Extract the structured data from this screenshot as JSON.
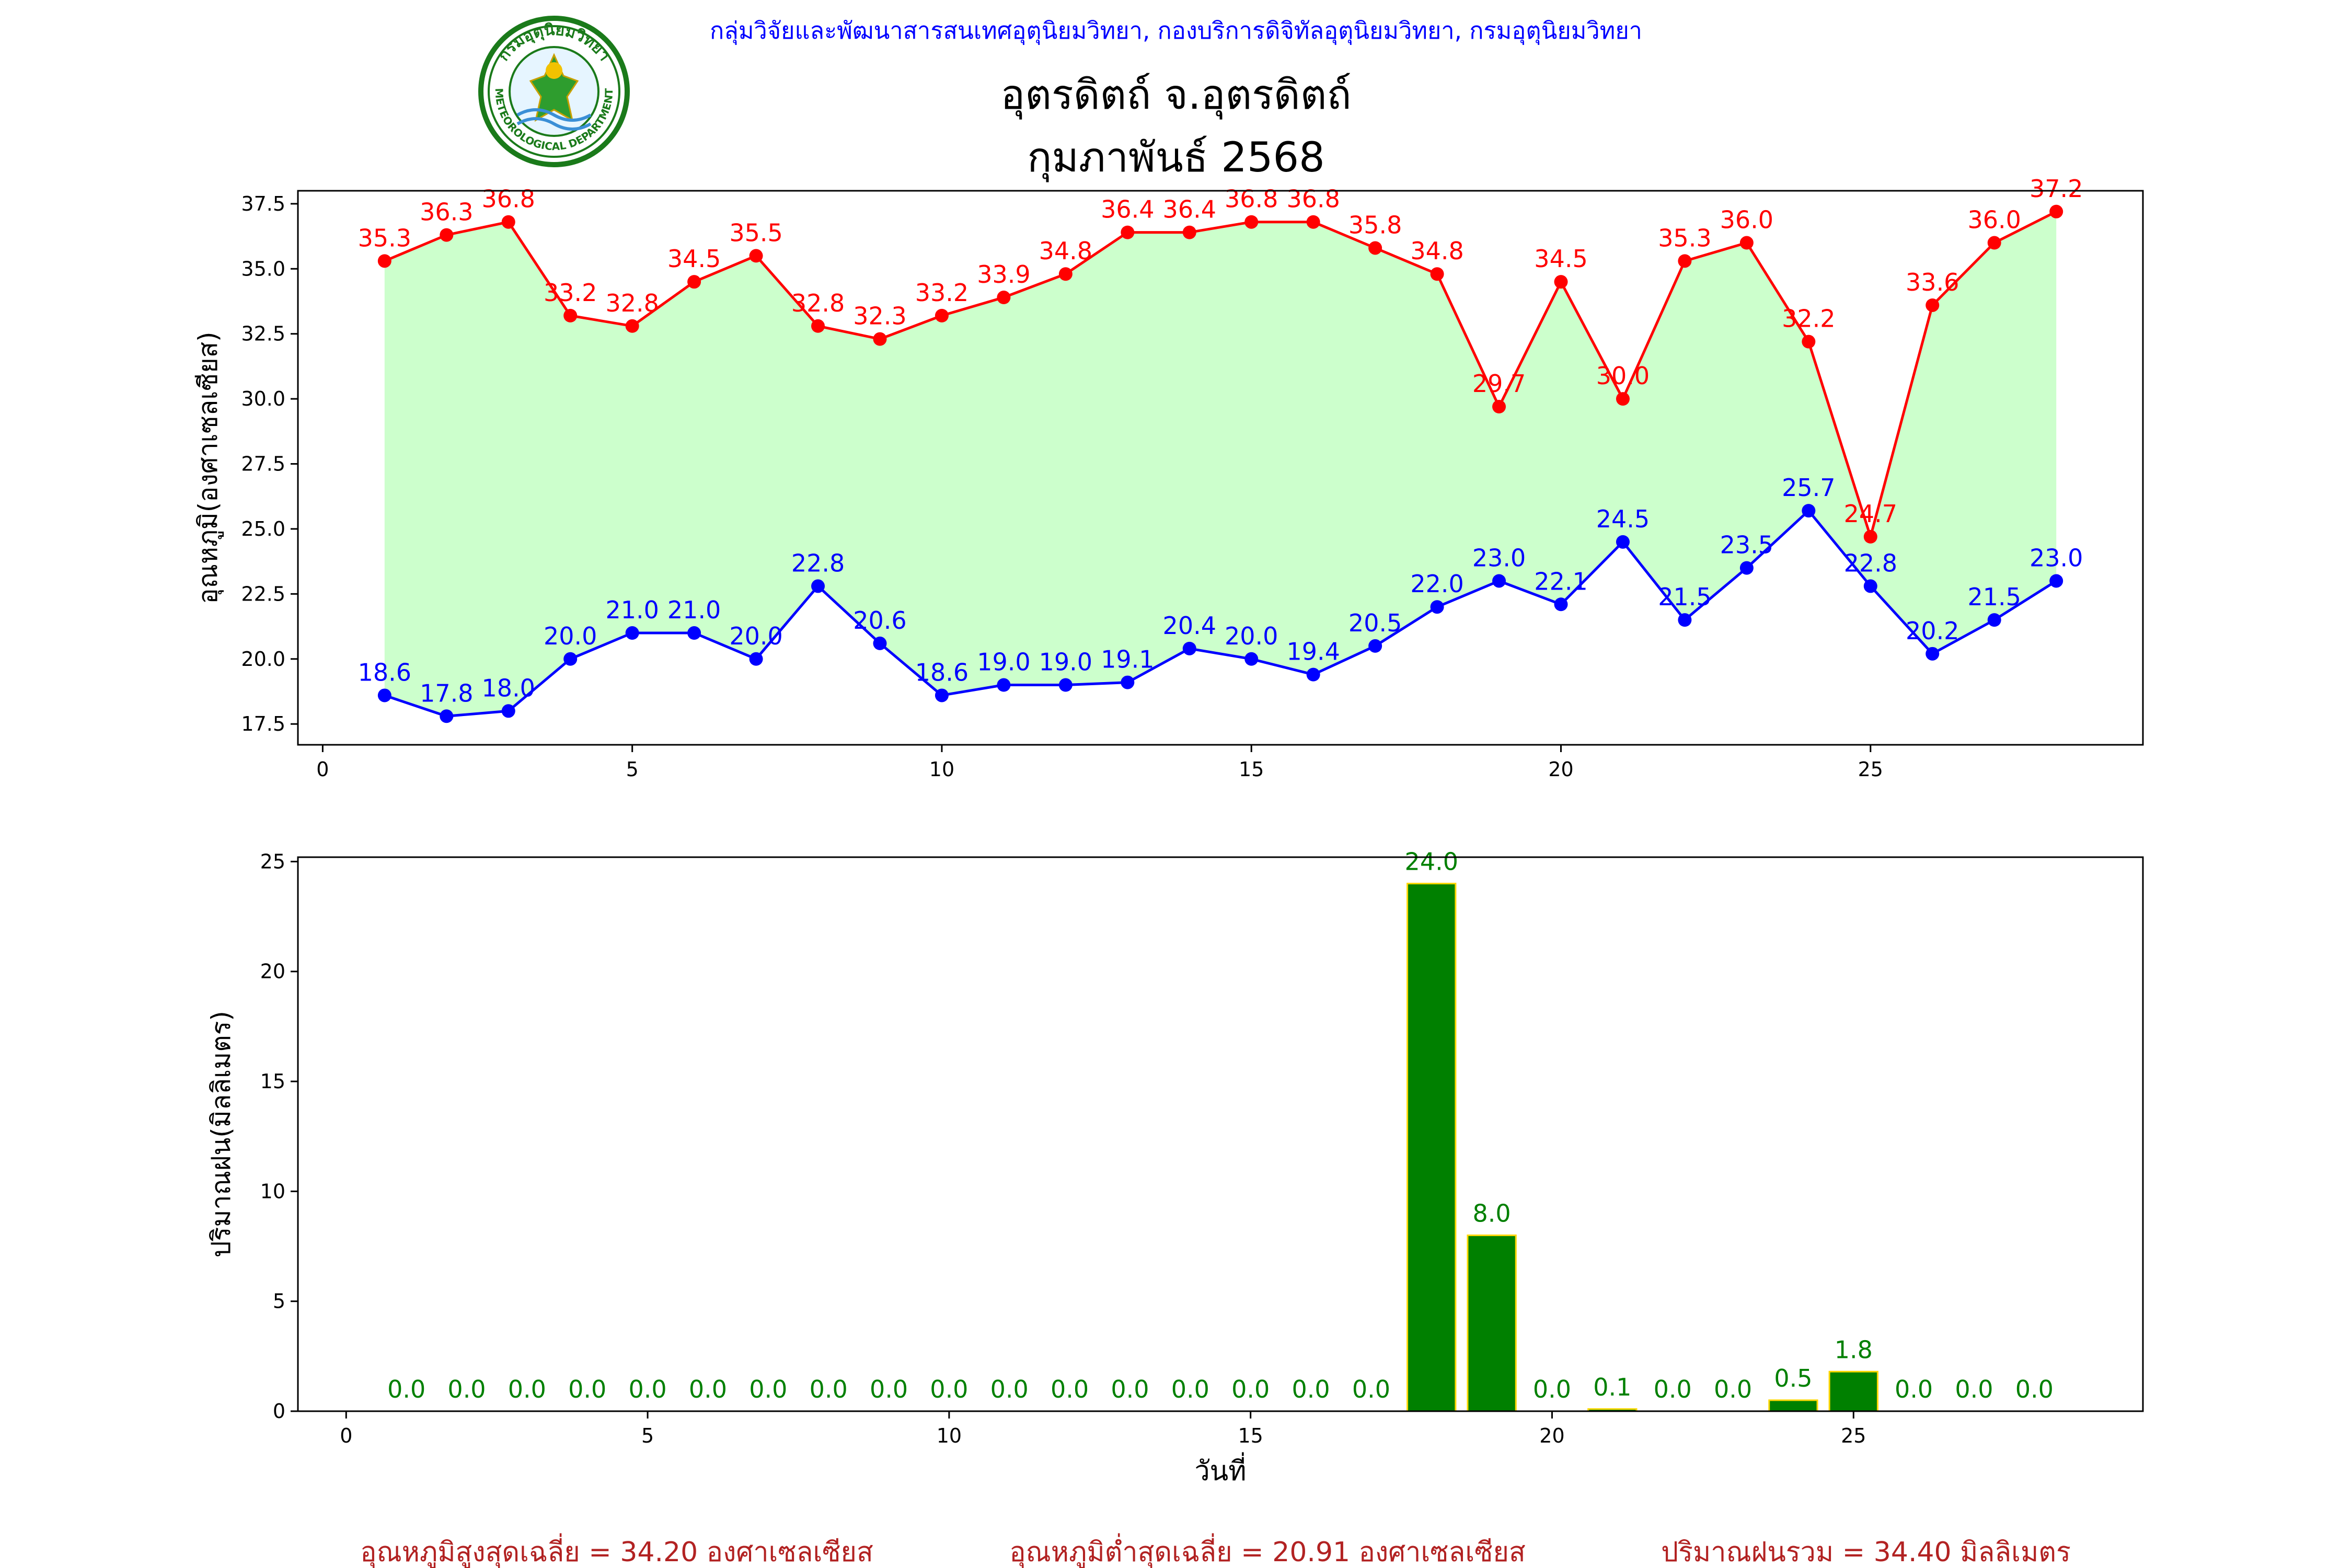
{
  "header": {
    "agency": "กลุ่มวิจัยและพัฒนาสารสนเทศอุตุนิยมวิทยา, กองบริการดิจิทัลอุตุนิยมวิทยา, กรมอุตุนิยมวิทยา",
    "station": "อุตรดิตถ์ จ.อุตรดิตถ์",
    "period": "กุมภาพันธ์ 2568"
  },
  "logo": {
    "top_text": "กรมอุตุนิยมวิทยา",
    "bottom_text": "METEOROLOGICAL DEPARTMENT"
  },
  "colors": {
    "max_line": "#ff0000",
    "min_line": "#0000ff",
    "fill": "#ccffcc",
    "bar_fill": "#008000",
    "bar_edge": "#ffd700",
    "bar_label": "#008000",
    "header_blue": "#0000ff",
    "summary": "#b22222"
  },
  "chart_data": [
    {
      "type": "line",
      "ylabel": "อุณหภูมิ(องศาเซลเซียส)",
      "xlabel": "",
      "x": [
        1,
        2,
        3,
        4,
        5,
        6,
        7,
        8,
        9,
        10,
        11,
        12,
        13,
        14,
        15,
        16,
        17,
        18,
        19,
        20,
        21,
        22,
        23,
        24,
        25,
        26,
        27,
        28
      ],
      "xlim": [
        -0.4,
        29.4
      ],
      "ylim": [
        16.7,
        38.0
      ],
      "xticks": [
        0,
        5,
        10,
        15,
        20,
        25
      ],
      "yticks": [
        17.5,
        20.0,
        22.5,
        25.0,
        27.5,
        30.0,
        32.5,
        35.0,
        37.5
      ],
      "series": [
        {
          "values": [
            35.3,
            36.3,
            36.8,
            33.2,
            32.8,
            34.5,
            35.5,
            32.8,
            32.3,
            33.2,
            33.9,
            34.8,
            36.4,
            36.4,
            36.8,
            36.8,
            35.8,
            34.8,
            29.7,
            34.5,
            30.0,
            35.3,
            36.0,
            32.2,
            24.7,
            33.6,
            36.0,
            37.2
          ]
        },
        {
          "values": [
            18.6,
            17.8,
            18.0,
            20.0,
            21.0,
            21.0,
            20.0,
            22.8,
            20.6,
            18.6,
            19.0,
            19.0,
            19.1,
            20.4,
            20.0,
            19.4,
            20.5,
            22.0,
            23.0,
            22.1,
            24.5,
            21.5,
            23.5,
            25.7,
            22.8,
            20.2,
            21.5,
            23.0
          ]
        }
      ]
    },
    {
      "type": "bar",
      "ylabel": "ปริมาณฝน(มิลลิเมตร)",
      "xlabel": "วันที่",
      "x": [
        1,
        2,
        3,
        4,
        5,
        6,
        7,
        8,
        9,
        10,
        11,
        12,
        13,
        14,
        15,
        16,
        17,
        18,
        19,
        20,
        21,
        22,
        23,
        24,
        25,
        26,
        27,
        28
      ],
      "values": [
        0.0,
        0.0,
        0.0,
        0.0,
        0.0,
        0.0,
        0.0,
        0.0,
        0.0,
        0.0,
        0.0,
        0.0,
        0.0,
        0.0,
        0.0,
        0.0,
        0.0,
        24.0,
        8.0,
        0.0,
        0.1,
        0.0,
        0.0,
        0.5,
        1.8,
        0.0,
        0.0,
        0.0
      ],
      "xlim": [
        -0.8,
        29.8
      ],
      "ylim": [
        0,
        25.2
      ],
      "xticks": [
        0,
        5,
        10,
        15,
        20,
        25
      ],
      "yticks": [
        0,
        5,
        10,
        15,
        20,
        25
      ]
    }
  ],
  "summary": {
    "avg_max": "อุณหภูมิสูงสุดเฉลี่ย = 34.20 องศาเซลเซียส",
    "avg_min": "อุณหภูมิต่ำสุดเฉลี่ย = 20.91 องศาเซลเซียส",
    "total_rain": "ปริมาณฝนรวม = 34.40 มิลลิเมตร"
  }
}
